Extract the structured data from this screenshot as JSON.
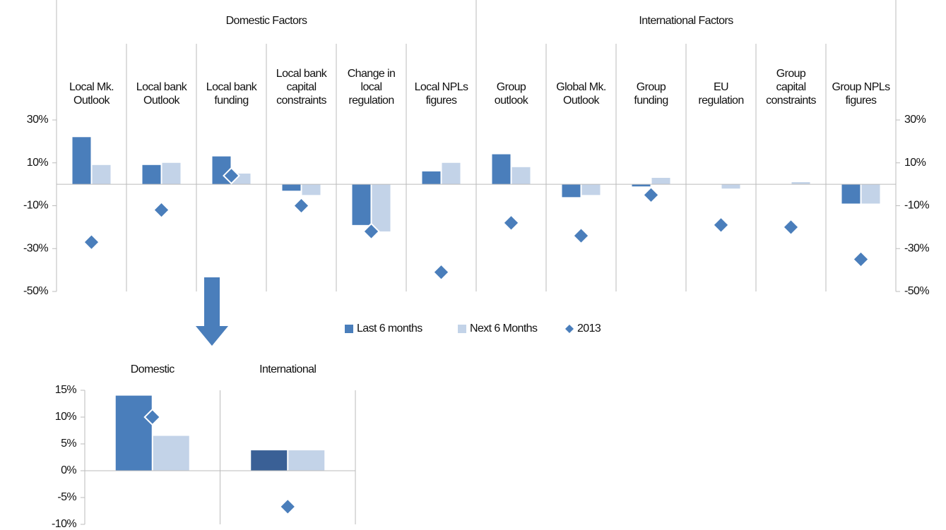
{
  "chart_data": [
    {
      "type": "bar",
      "group_labels": [
        "Domestic Factors",
        "International Factors"
      ],
      "categories": [
        "Local Mk.\nOutlook",
        "Local bank\nOutlook",
        "Local bank\nfunding",
        "Local bank\ncapital\nconstraints",
        "Change in\nlocal\nregulation",
        "Local NPLs\nfigures",
        "Group\noutlook",
        "Global Mk.\nOutlook",
        "Group\nfunding",
        "EU\nregulation",
        "Group\ncapital\nconstraints",
        "Group NPLs\nfigures"
      ],
      "series": [
        {
          "name": "Last 6 months",
          "color": "#4a7ebb",
          "values": [
            22,
            9,
            13,
            -3,
            -19,
            6,
            14,
            -6,
            -1,
            0,
            0,
            -9
          ]
        },
        {
          "name": "Next 6 Months",
          "color": "#c3d3e8",
          "values": [
            9,
            10,
            5,
            -5,
            -22,
            10,
            8,
            -5,
            3,
            -2,
            1,
            -9
          ]
        },
        {
          "name": "2013",
          "color": "#4a7ebb",
          "marker": "diamond",
          "values": [
            -27,
            -12,
            4,
            -10,
            -22,
            -41,
            -18,
            -24,
            -5,
            -19,
            -20,
            -35
          ]
        }
      ],
      "ylim": [
        -50,
        30
      ],
      "yticks": [
        {
          "value": -50,
          "label": "-50%"
        },
        {
          "value": -30,
          "label": "-30%"
        },
        {
          "value": -10,
          "label": "-10%"
        },
        {
          "value": 10,
          "label": "10%"
        },
        {
          "value": 30,
          "label": "30%"
        }
      ]
    },
    {
      "type": "bar",
      "categories": [
        "Domestic",
        "International"
      ],
      "series": [
        {
          "name": "Last 6 months",
          "colors": [
            "#4a7ebb",
            "#3a6096"
          ],
          "values": [
            14,
            3.8
          ]
        },
        {
          "name": "Next 6 Months",
          "color": "#c3d3e8",
          "values": [
            6.5,
            3.8
          ]
        },
        {
          "name": "2013",
          "color": "#4a7ebb",
          "marker": "diamond",
          "values": [
            10,
            -6.7
          ]
        }
      ],
      "ylim": [
        -10,
        15
      ],
      "yticks": [
        {
          "value": -10,
          "label": "-10%"
        },
        {
          "value": -5,
          "label": "-5%"
        },
        {
          "value": 0,
          "label": "0%"
        },
        {
          "value": 5,
          "label": "5%"
        },
        {
          "value": 10,
          "label": "10%"
        },
        {
          "value": 15,
          "label": "15%"
        }
      ]
    }
  ]
}
